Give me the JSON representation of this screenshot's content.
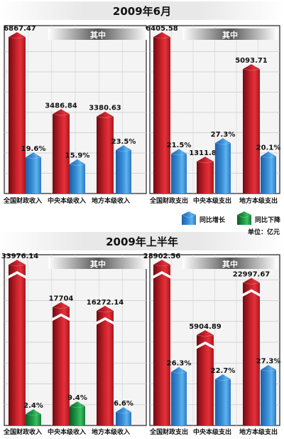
{
  "legend": {
    "growth": "同比增长",
    "decline": "同比下降",
    "unit": "单位：亿元"
  },
  "chart_data": [
    {
      "type": "bar",
      "title": "2009年6月",
      "panels": [
        {
          "group_label": "其中",
          "categories": [
            "全国财政收入",
            "中央本级收入",
            "地方本级收入"
          ],
          "series": [
            {
              "name": "",
              "values": [
                6867.47,
                3486.84,
                3380.63
              ],
              "labels": [
                "6867.47",
                "3486.84",
                "3380.63"
              ]
            },
            {
              "name": "同比增长",
              "values": [
                19.6,
                15.9,
                23.5
              ],
              "labels": [
                "19.6%",
                "15.9%",
                "23.5%"
              ],
              "direction": [
                "up",
                "up",
                "up"
              ]
            }
          ]
        },
        {
          "group_label": "其中",
          "categories": [
            "全国财政支出",
            "中央本级支出",
            "地方本级支出"
          ],
          "series": [
            {
              "name": "",
              "values": [
                6405.58,
                1311.87,
                5093.71
              ],
              "labels": [
                "6405.58",
                "1311.87",
                "5093.71"
              ]
            },
            {
              "name": "同比增长",
              "values": [
                21.5,
                27.3,
                20.1
              ],
              "labels": [
                "21.5%",
                "27.3%",
                "20.1%"
              ],
              "direction": [
                "up",
                "up",
                "up"
              ]
            }
          ]
        }
      ],
      "grid": true,
      "legend_position": "bottom-right"
    },
    {
      "type": "bar",
      "title": "2009年上半年",
      "panels": [
        {
          "group_label": "其中",
          "categories": [
            "全国财政收入",
            "中央本级收入",
            "地方本级收入"
          ],
          "series": [
            {
              "name": "",
              "values": [
                33976.14,
                17704,
                16272.14
              ],
              "labels": [
                "33976.14",
                "17704",
                "16272.14"
              ]
            },
            {
              "name": "同比增长",
              "values": [
                2.4,
                9.4,
                6.6
              ],
              "labels": [
                "2.4%",
                "9.4%",
                "6.6%"
              ],
              "direction": [
                "down",
                "down",
                "up"
              ]
            }
          ]
        },
        {
          "group_label": "其中",
          "categories": [
            "全国财政支出",
            "中央本级支出",
            "地方本级支出"
          ],
          "series": [
            {
              "name": "",
              "values": [
                28902.56,
                5904.89,
                22997.67
              ],
              "labels": [
                "28902.56",
                "5904.89",
                "22997.67"
              ]
            },
            {
              "name": "同比增长",
              "values": [
                26.3,
                22.7,
                27.3
              ],
              "labels": [
                "26.3%",
                "22.7%",
                "27.3%"
              ],
              "direction": [
                "up",
                "up",
                "up"
              ]
            }
          ]
        }
      ],
      "grid": true,
      "axis_break": true
    }
  ]
}
